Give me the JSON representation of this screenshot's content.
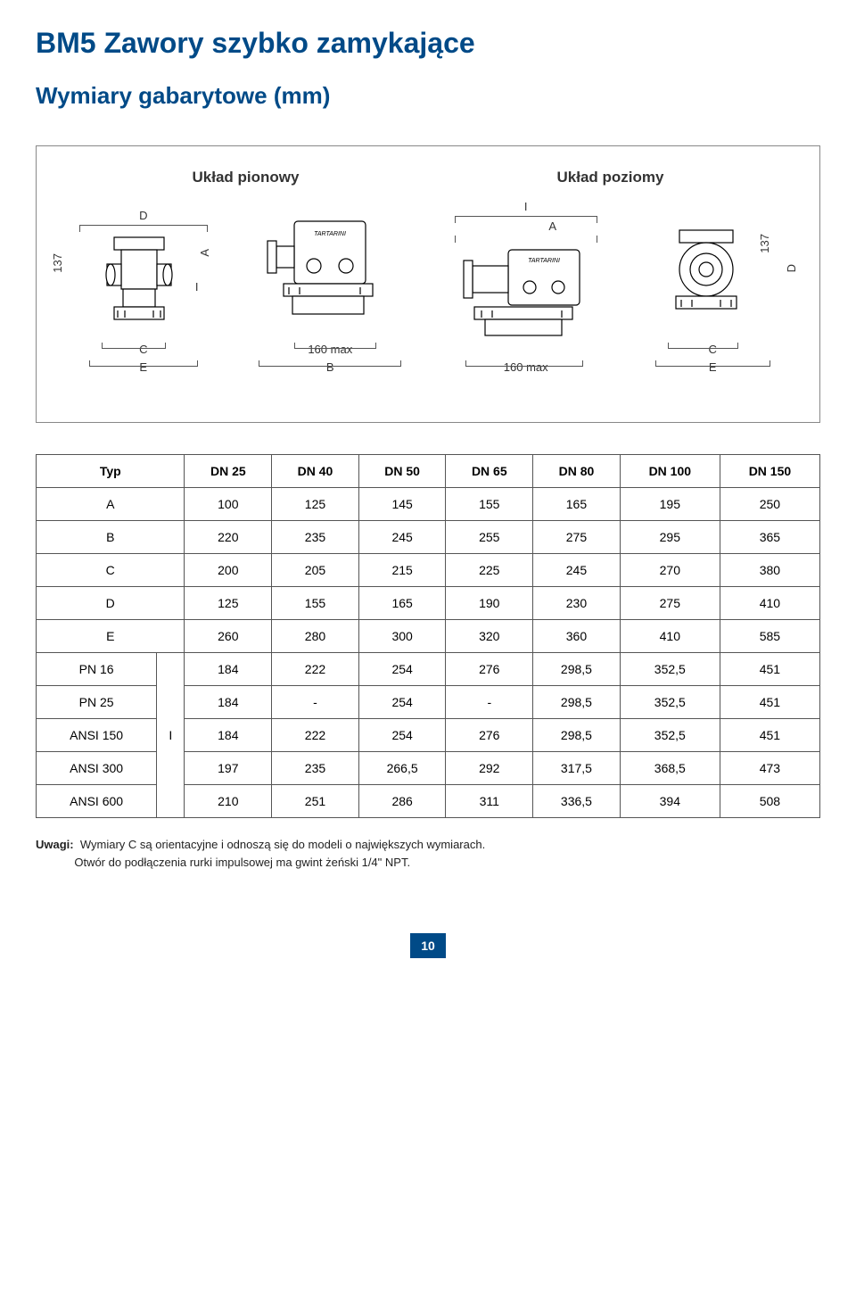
{
  "page_title": "BM5 Zawory szybko zamykające",
  "section_title": "Wymiary gabarytowe (mm)",
  "page_number": "10",
  "colors": {
    "brand_blue": "#004a87",
    "border": "#555555",
    "text_dark": "#222222"
  },
  "diagram": {
    "title_left": "Układ pionowy",
    "title_right": "Układ poziomy",
    "dim_labels": {
      "D": "D",
      "I": "I",
      "A": "A",
      "B": "B",
      "C": "C",
      "E": "E",
      "fixed_height": "137",
      "fixed_max": "160 max"
    }
  },
  "table": {
    "header": [
      "Typ",
      "DN 25",
      "DN 40",
      "DN 50",
      "DN 65",
      "DN 80",
      "DN 100",
      "DN 150"
    ],
    "rows": [
      {
        "label": "A",
        "cells": [
          "100",
          "125",
          "145",
          "155",
          "165",
          "195",
          "250"
        ]
      },
      {
        "label": "B",
        "cells": [
          "220",
          "235",
          "245",
          "255",
          "275",
          "295",
          "365"
        ]
      },
      {
        "label": "C",
        "cells": [
          "200",
          "205",
          "215",
          "225",
          "245",
          "270",
          "380"
        ]
      },
      {
        "label": "D",
        "cells": [
          "125",
          "155",
          "165",
          "190",
          "230",
          "275",
          "410"
        ]
      },
      {
        "label": "E",
        "cells": [
          "260",
          "280",
          "300",
          "320",
          "360",
          "410",
          "585"
        ]
      }
    ],
    "group_col_label": "I",
    "group_rows": [
      {
        "label": "PN 16",
        "cells": [
          "184",
          "222",
          "254",
          "276",
          "298,5",
          "352,5",
          "451"
        ]
      },
      {
        "label": "PN 25",
        "cells": [
          "184",
          "-",
          "254",
          "-",
          "298,5",
          "352,5",
          "451"
        ]
      },
      {
        "label": "ANSI 150",
        "cells": [
          "184",
          "222",
          "254",
          "276",
          "298,5",
          "352,5",
          "451"
        ]
      },
      {
        "label": "ANSI 300",
        "cells": [
          "197",
          "235",
          "266,5",
          "292",
          "317,5",
          "368,5",
          "473"
        ]
      },
      {
        "label": "ANSI 600",
        "cells": [
          "210",
          "251",
          "286",
          "311",
          "336,5",
          "394",
          "508"
        ]
      }
    ]
  },
  "notes": {
    "prefix": "Uwagi:",
    "line1": "Wymiary C są orientacyjne i odnoszą się do modeli o największych wymiarach.",
    "line2": "Otwór do podłączenia rurki impulsowej ma gwint żeński 1/4\" NPT."
  }
}
